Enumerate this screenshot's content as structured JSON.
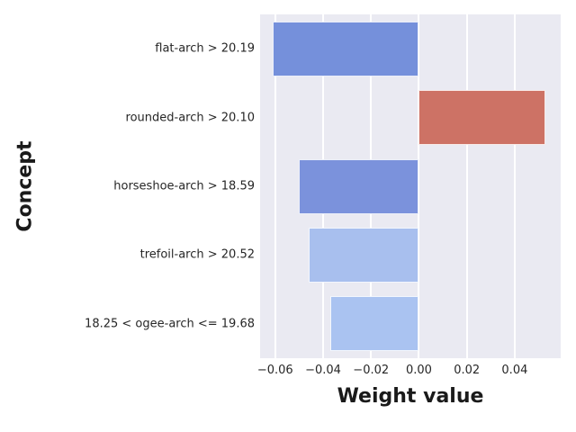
{
  "chart_data": {
    "type": "bar",
    "orientation": "horizontal",
    "title": "",
    "xlabel": "Weight value",
    "ylabel": "Concept",
    "categories": [
      "flat-arch > 20.19",
      "rounded-arch > 20.10",
      "horseshoe-arch > 18.59",
      "trefoil-arch > 20.52",
      "18.25 < ogee-arch <= 19.68"
    ],
    "values": [
      -0.061,
      0.053,
      -0.05,
      -0.046,
      -0.037
    ],
    "bar_colors": [
      "#7590db",
      "#cd7265",
      "#7b92dc",
      "#a8bfee",
      "#aac3f1"
    ],
    "xlim": [
      -0.0663,
      0.0592
    ],
    "xticks": {
      "values": [
        -0.06,
        -0.04,
        -0.02,
        0.0,
        0.02,
        0.04
      ],
      "labels": [
        "−0.06",
        "−0.04",
        "−0.02",
        "0.00",
        "0.02",
        "0.04"
      ]
    },
    "grid": true,
    "legend": "none",
    "plot_background": "#eaeaf2",
    "grid_color": "#ffffff",
    "tick_color": "#262626",
    "label_color": "#1a1a1a"
  }
}
